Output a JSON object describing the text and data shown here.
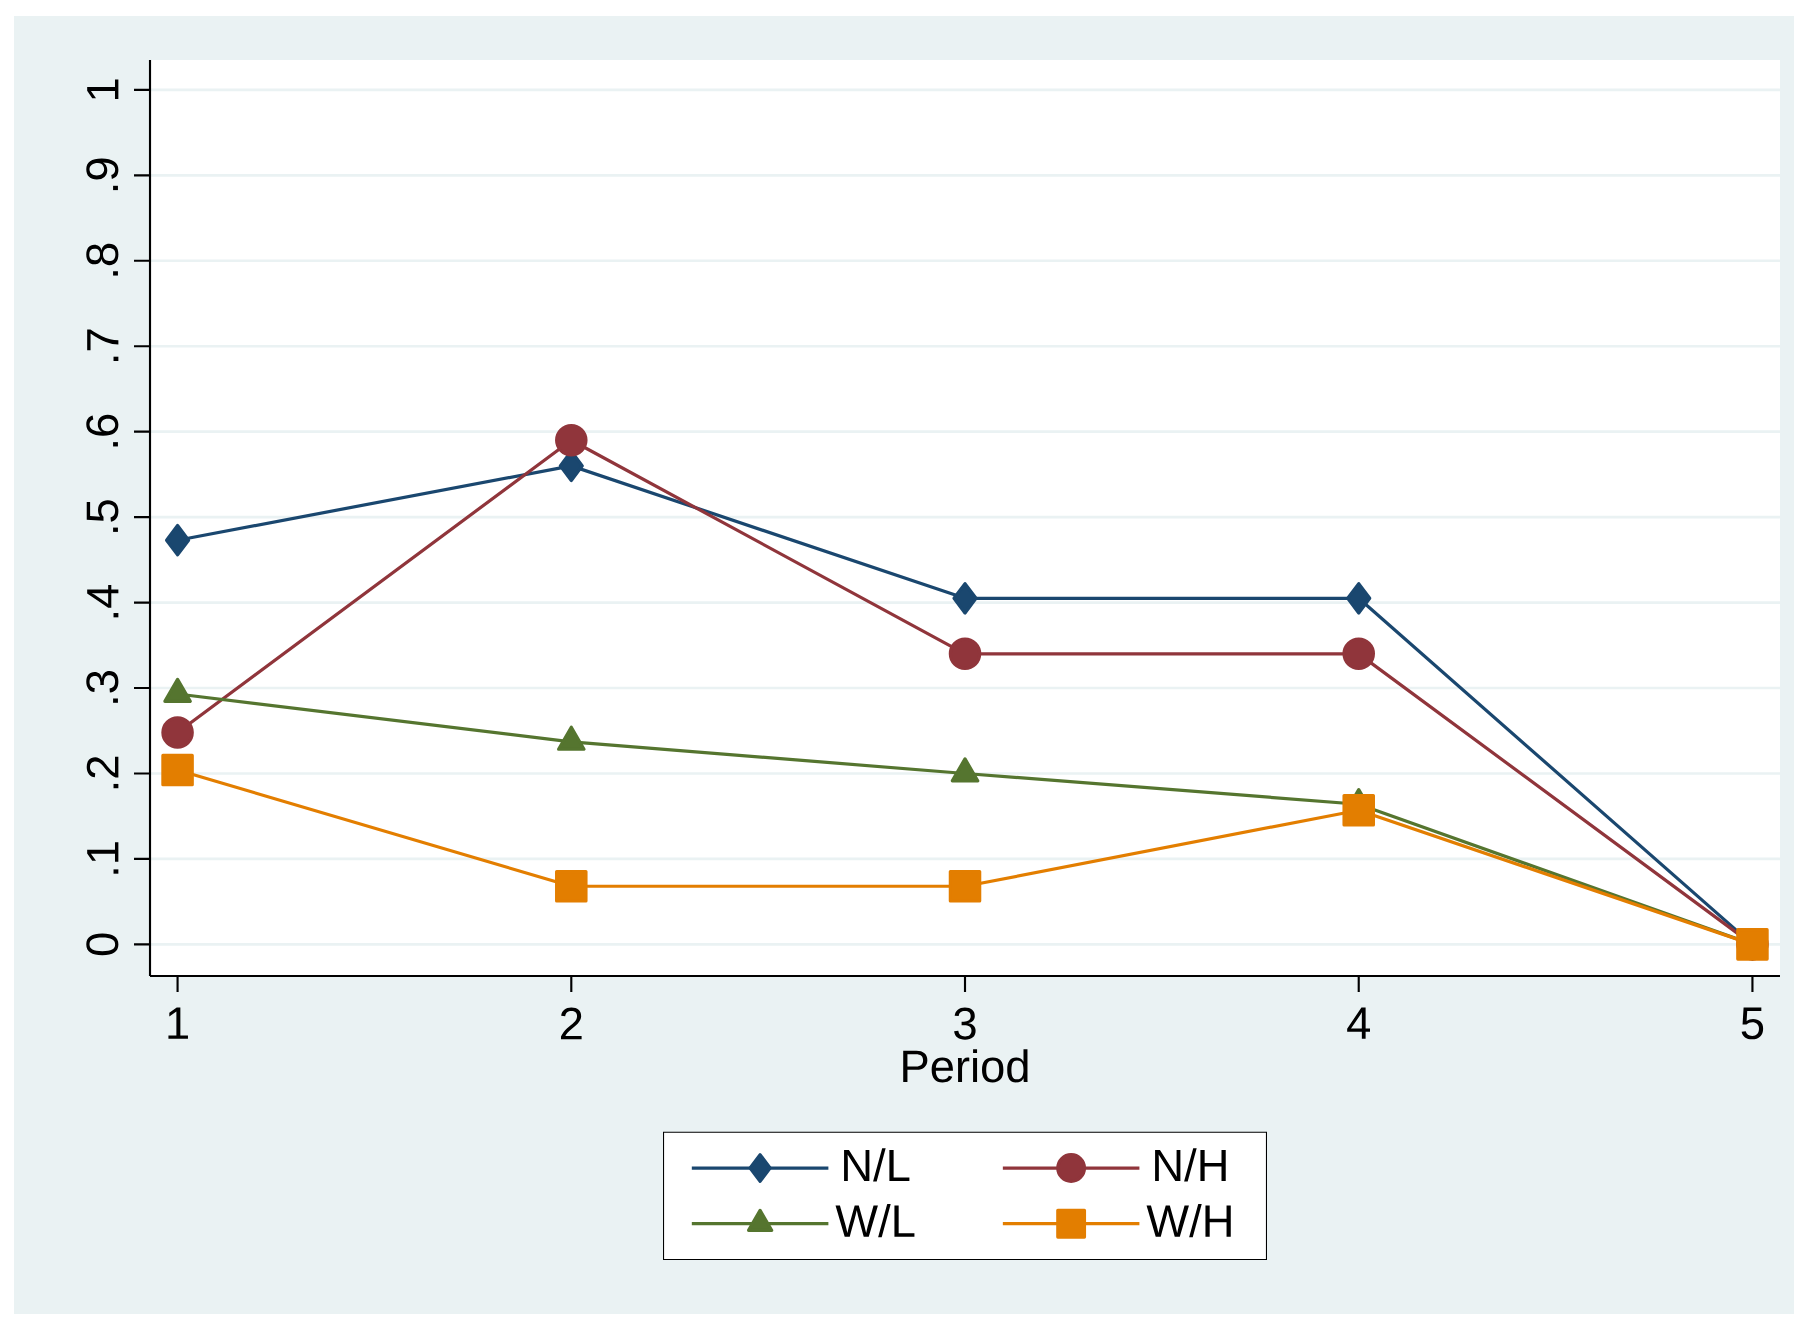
{
  "chart_data": {
    "type": "line",
    "xlabel": "Period",
    "x": [
      1,
      2,
      3,
      4,
      5
    ],
    "series": [
      {
        "name": "N/L",
        "color": "#1a476f",
        "marker": "diamond",
        "values": [
          0.473,
          0.56,
          0.405,
          0.405,
          0
        ]
      },
      {
        "name": "N/H",
        "color": "#90353b",
        "marker": "circle",
        "values": [
          0.248,
          0.59,
          0.34,
          0.34,
          0
        ]
      },
      {
        "name": "W/L",
        "color": "#55752f",
        "marker": "triangle",
        "values": [
          0.293,
          0.237,
          0.2,
          0.164,
          0
        ]
      },
      {
        "name": "W/H",
        "color": "#e37e00",
        "marker": "square",
        "values": [
          0.204,
          0.068,
          0.068,
          0.157,
          0
        ]
      }
    ],
    "xlim": [
      0.93,
      5.07
    ],
    "ylim": [
      -0.037,
      1.035
    ],
    "xticks": [
      1,
      2,
      3,
      4,
      5
    ],
    "yticks": [
      0,
      {
        "value": 0.1,
        "label": ".1"
      },
      {
        "value": 0.2,
        "label": ".2"
      },
      {
        "value": 0.3,
        "label": ".3"
      },
      {
        "value": 0.4,
        "label": ".4"
      },
      {
        "value": 0.5,
        "label": ".5"
      },
      {
        "value": 0.6,
        "label": ".6"
      },
      {
        "value": 0.7,
        "label": ".7"
      },
      {
        "value": 0.8,
        "label": ".8"
      },
      {
        "value": 0.9,
        "label": ".9"
      },
      1
    ],
    "grid": "y",
    "legend": "bottom",
    "line_style": "solid"
  }
}
